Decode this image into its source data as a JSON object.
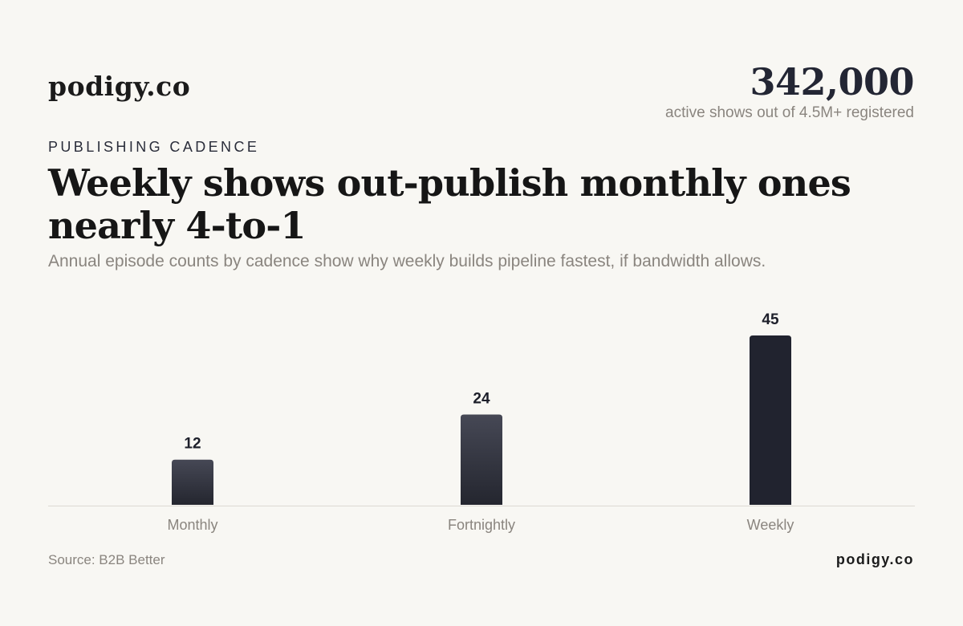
{
  "header": {
    "brand": "podigy.co",
    "stat_value": "342,000",
    "stat_caption": "active shows out of 4.5M+ registered"
  },
  "eyebrow": "PUBLISHING CADENCE",
  "headline": "Weekly shows out-publish monthly ones nearly 4-to-1",
  "subtitle": "Annual episode counts by cadence show why weekly builds pipeline fastest, if bandwidth allows.",
  "footer": {
    "source": "Source: B2B Better",
    "brand": "podigy.co"
  },
  "colors": {
    "background": "#f8f7f3",
    "bar_top": "#464855",
    "bar_bottom": "#24262f",
    "bar_highlight": "#21232f",
    "baseline": "#dcd9d3",
    "category_label": "#8a857f",
    "value_label": "#1d1f2a"
  },
  "chart_data": {
    "type": "bar",
    "title": "",
    "xlabel": "",
    "ylabel": "",
    "categories": [
      "Monthly",
      "Fortnightly",
      "Weekly"
    ],
    "values": [
      12,
      24,
      45
    ],
    "ylim": [
      0,
      45
    ],
    "grid": false,
    "data_labels": true,
    "highlighted_category": "Weekly"
  }
}
